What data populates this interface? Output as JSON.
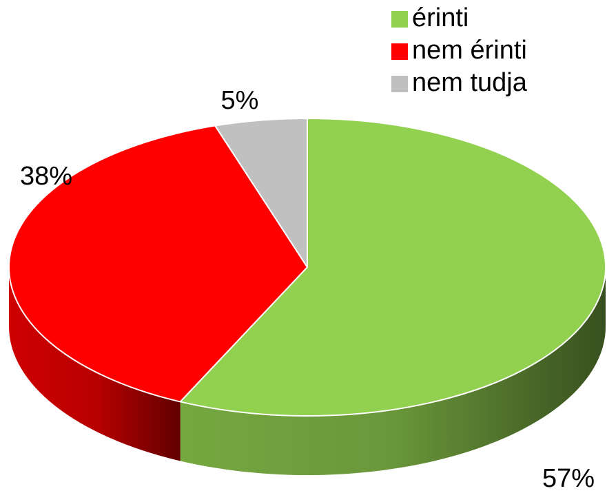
{
  "chart_data": {
    "type": "pie",
    "categories": [
      "érinti",
      "nem érinti",
      "nem tudja"
    ],
    "values": [
      57,
      38,
      5
    ],
    "value_labels": [
      "57%",
      "38%",
      "5%"
    ],
    "colors": [
      "#92d050",
      "#ff0000",
      "#c0c0c0"
    ],
    "legend": "top-right"
  }
}
